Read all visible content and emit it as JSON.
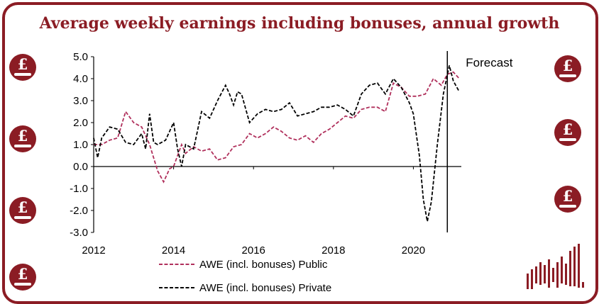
{
  "theme": {
    "accent": "#8b1c24",
    "public_color": "#b0305c",
    "private_color": "#000000"
  },
  "icons": [
    "pound-coin-icon",
    "bar-logo-icon"
  ],
  "chart_data": {
    "type": "line",
    "title": "Average weekly earnings including bonuses, annual growth",
    "xlim": [
      2012,
      2021.2
    ],
    "ylim": [
      -3.0,
      5.0
    ],
    "x_ticks": [
      "2012",
      "2014",
      "2016",
      "2018",
      "2020"
    ],
    "y_ticks": [
      "5.0",
      "4.0",
      "3.0",
      "2.0",
      "1.0",
      "0.0",
      "-1.0",
      "-2.0",
      "-3.0"
    ],
    "forecast_line_x": 2020.85,
    "annotation": "Forecast",
    "legend_position": "bottom-left",
    "series": [
      {
        "name": "AWE (incl. bonuses) Public",
        "color": "#b0305c",
        "x": [
          2012.0,
          2012.2,
          2012.4,
          2012.6,
          2012.8,
          2013.0,
          2013.2,
          2013.4,
          2013.6,
          2013.75,
          2013.9,
          2014.0,
          2014.1,
          2014.2,
          2014.3,
          2014.5,
          2014.7,
          2014.9,
          2015.1,
          2015.3,
          2015.5,
          2015.7,
          2015.9,
          2016.1,
          2016.3,
          2016.5,
          2016.7,
          2016.9,
          2017.1,
          2017.3,
          2017.5,
          2017.7,
          2017.9,
          2018.1,
          2018.3,
          2018.5,
          2018.7,
          2018.9,
          2019.1,
          2019.3,
          2019.5,
          2019.7,
          2019.9,
          2020.1,
          2020.3,
          2020.5,
          2020.7,
          2020.85,
          2021.0,
          2021.15
        ],
        "y": [
          1.0,
          1.0,
          1.2,
          1.3,
          2.5,
          2.0,
          1.8,
          1.0,
          -0.2,
          -0.7,
          -0.1,
          0.0,
          0.5,
          1.0,
          0.6,
          0.9,
          0.7,
          0.8,
          0.3,
          0.4,
          0.9,
          1.0,
          1.5,
          1.3,
          1.5,
          1.8,
          1.6,
          1.3,
          1.2,
          1.4,
          1.1,
          1.5,
          1.7,
          2.0,
          2.3,
          2.2,
          2.6,
          2.7,
          2.7,
          2.5,
          3.8,
          3.6,
          3.2,
          3.2,
          3.3,
          4.0,
          3.7,
          4.2,
          4.3,
          4.0
        ]
      },
      {
        "name": "AWE (incl. bonuses) Private",
        "color": "#000000",
        "x": [
          2012.0,
          2012.1,
          2012.2,
          2012.4,
          2012.6,
          2012.8,
          2013.0,
          2013.2,
          2013.3,
          2013.4,
          2013.5,
          2013.6,
          2013.8,
          2014.0,
          2014.1,
          2014.2,
          2014.3,
          2014.5,
          2014.7,
          2014.9,
          2015.1,
          2015.3,
          2015.4,
          2015.5,
          2015.6,
          2015.7,
          2015.9,
          2016.1,
          2016.3,
          2016.5,
          2016.7,
          2016.9,
          2017.1,
          2017.3,
          2017.5,
          2017.7,
          2017.9,
          2018.1,
          2018.3,
          2018.5,
          2018.7,
          2018.9,
          2019.1,
          2019.3,
          2019.5,
          2019.7,
          2019.9,
          2020.0,
          2020.15,
          2020.25,
          2020.35,
          2020.45,
          2020.6,
          2020.75,
          2020.9,
          2021.0,
          2021.15
        ],
        "y": [
          1.3,
          0.4,
          1.3,
          1.8,
          1.7,
          1.1,
          1.0,
          1.5,
          0.8,
          2.4,
          1.1,
          1.0,
          1.2,
          2.0,
          0.8,
          0.0,
          1.0,
          0.8,
          2.5,
          2.2,
          3.0,
          3.7,
          3.3,
          2.8,
          3.4,
          3.3,
          2.0,
          2.4,
          2.6,
          2.5,
          2.6,
          2.9,
          2.3,
          2.4,
          2.5,
          2.7,
          2.7,
          2.8,
          2.6,
          2.3,
          3.3,
          3.7,
          3.8,
          3.3,
          4.0,
          3.6,
          2.9,
          2.4,
          0.5,
          -1.5,
          -2.5,
          -1.6,
          1.0,
          3.3,
          4.6,
          3.9,
          3.4
        ]
      }
    ]
  }
}
